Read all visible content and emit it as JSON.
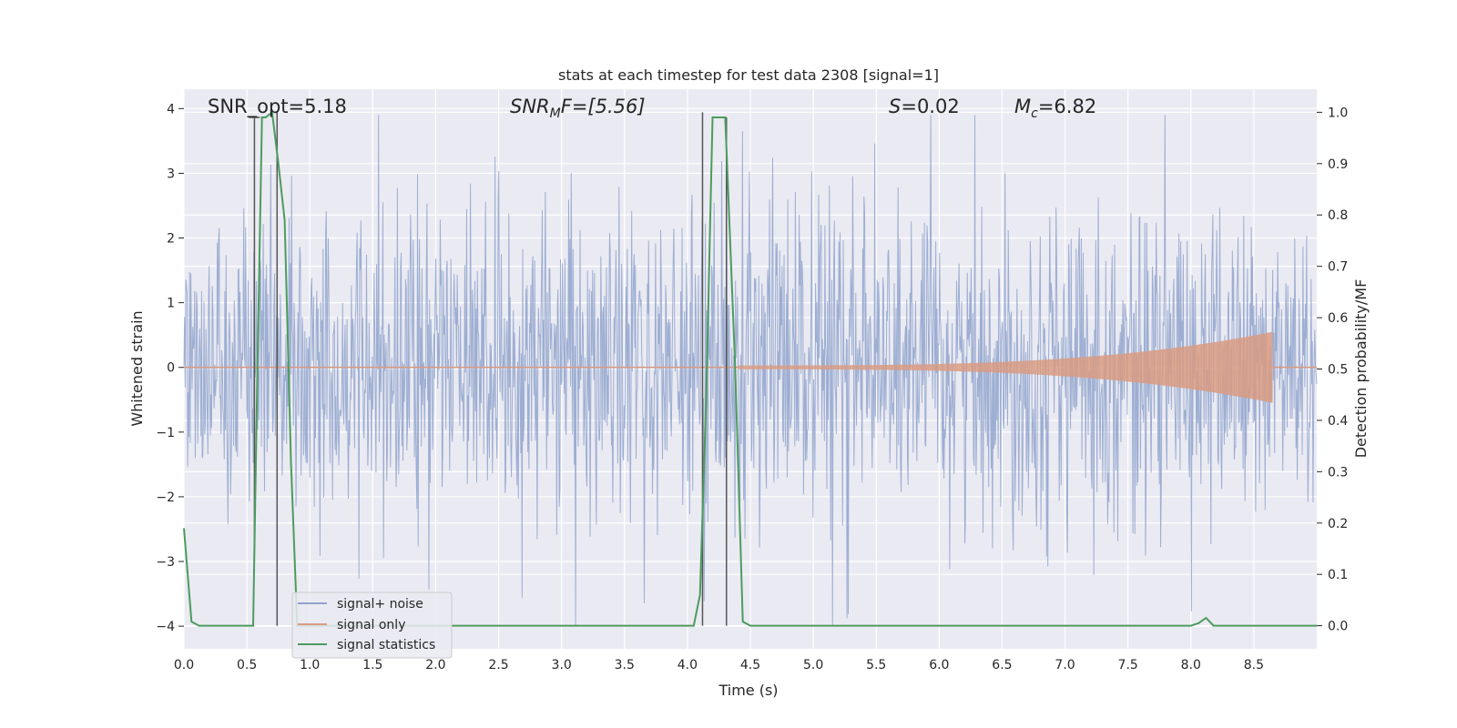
{
  "chart_data": {
    "type": "line",
    "title": "stats at each timestep for test data 2308 [signal=1]",
    "xlabel": "Time (s)",
    "ylabel_left": "Whitened strain",
    "ylabel_right": "Detection probability/MF",
    "xlim": [
      0.0,
      9.0
    ],
    "ylim_left": [
      -4.35,
      4.3
    ],
    "ylim_right": [
      -0.045,
      1.045
    ],
    "xticks": [
      "0.0",
      "0.5",
      "1.0",
      "1.5",
      "2.0",
      "2.5",
      "3.0",
      "3.5",
      "4.0",
      "4.5",
      "5.0",
      "5.5",
      "6.0",
      "6.5",
      "7.0",
      "7.5",
      "8.0",
      "8.5"
    ],
    "yticks_left": [
      "4",
      "3",
      "2",
      "1",
      "0",
      "−1",
      "−2",
      "−3",
      "−4"
    ],
    "yticks_right": [
      "1.0",
      "0.9",
      "0.8",
      "0.7",
      "0.6",
      "0.5",
      "0.4",
      "0.3",
      "0.2",
      "0.1",
      "0.0"
    ],
    "grid": true,
    "legend_position": "lower-left",
    "annotations": {
      "snr_opt": "SNR_opt=5.18",
      "snr_mf_base": "SNR",
      "snr_mf_sub": "M",
      "snr_mf_rest": "F=[5.56]",
      "s_base": "S",
      "s_rest": "=0.02",
      "mc_base": "M",
      "mc_sub": "c",
      "mc_rest": "=6.82"
    },
    "series": [
      {
        "name": "signal+ noise",
        "color": "#8fa3cc",
        "description_values": "noise-like strain between about -4.0 and 3.9",
        "envelope_percent_range": [
          -1.6,
          1.6
        ]
      },
      {
        "name": "signal only",
        "color": "#d99b83",
        "chirp_start_time": 4.4,
        "chirp_end_time": 8.65,
        "chirp_peak_amplitude": 0.55
      },
      {
        "name": "signal statistics",
        "color": "#4c9b5e",
        "x": [
          0.0,
          0.06,
          0.12,
          0.2,
          0.3,
          0.4,
          0.5,
          0.55,
          0.58,
          0.62,
          0.65,
          0.7,
          0.75,
          0.8,
          0.85,
          0.9,
          1.0,
          1.5,
          2.0,
          2.5,
          3.0,
          3.5,
          4.0,
          4.05,
          4.1,
          4.15,
          4.2,
          4.25,
          4.3,
          4.38,
          4.44,
          4.5,
          5.0,
          6.0,
          7.0,
          7.5,
          8.0,
          8.06,
          8.12,
          8.18,
          8.25,
          8.5,
          9.0
        ],
        "values": [
          0.19,
          0.008,
          0.0,
          0.0,
          0.0,
          0.0,
          0.0,
          0.0,
          0.45,
          0.99,
          0.99,
          1.0,
          0.9,
          0.79,
          0.32,
          0.0,
          0.0,
          0.0,
          0.0,
          0.0,
          0.0,
          0.0,
          0.0,
          0.0,
          0.06,
          0.45,
          0.99,
          0.99,
          0.99,
          0.5,
          0.008,
          0.0,
          0.0,
          0.0,
          0.0,
          0.0,
          0.0,
          0.005,
          0.015,
          0.0,
          0.0,
          0.0,
          0.0
        ]
      }
    ],
    "vertical_markers": [
      {
        "x": 0.56,
        "y_top": 0.99,
        "y_bottom": 0.15
      },
      {
        "x": 0.74,
        "y_top": 1.0,
        "y_bottom": 0.0
      },
      {
        "x": 4.12,
        "y_top": 1.0,
        "y_bottom": 0.0
      },
      {
        "x": 4.31,
        "y_top": 0.99,
        "y_bottom": 0.0
      }
    ],
    "colors": {
      "plot_background": "#eaeaf2",
      "grid": "#ffffff",
      "marker": "#555555"
    }
  }
}
